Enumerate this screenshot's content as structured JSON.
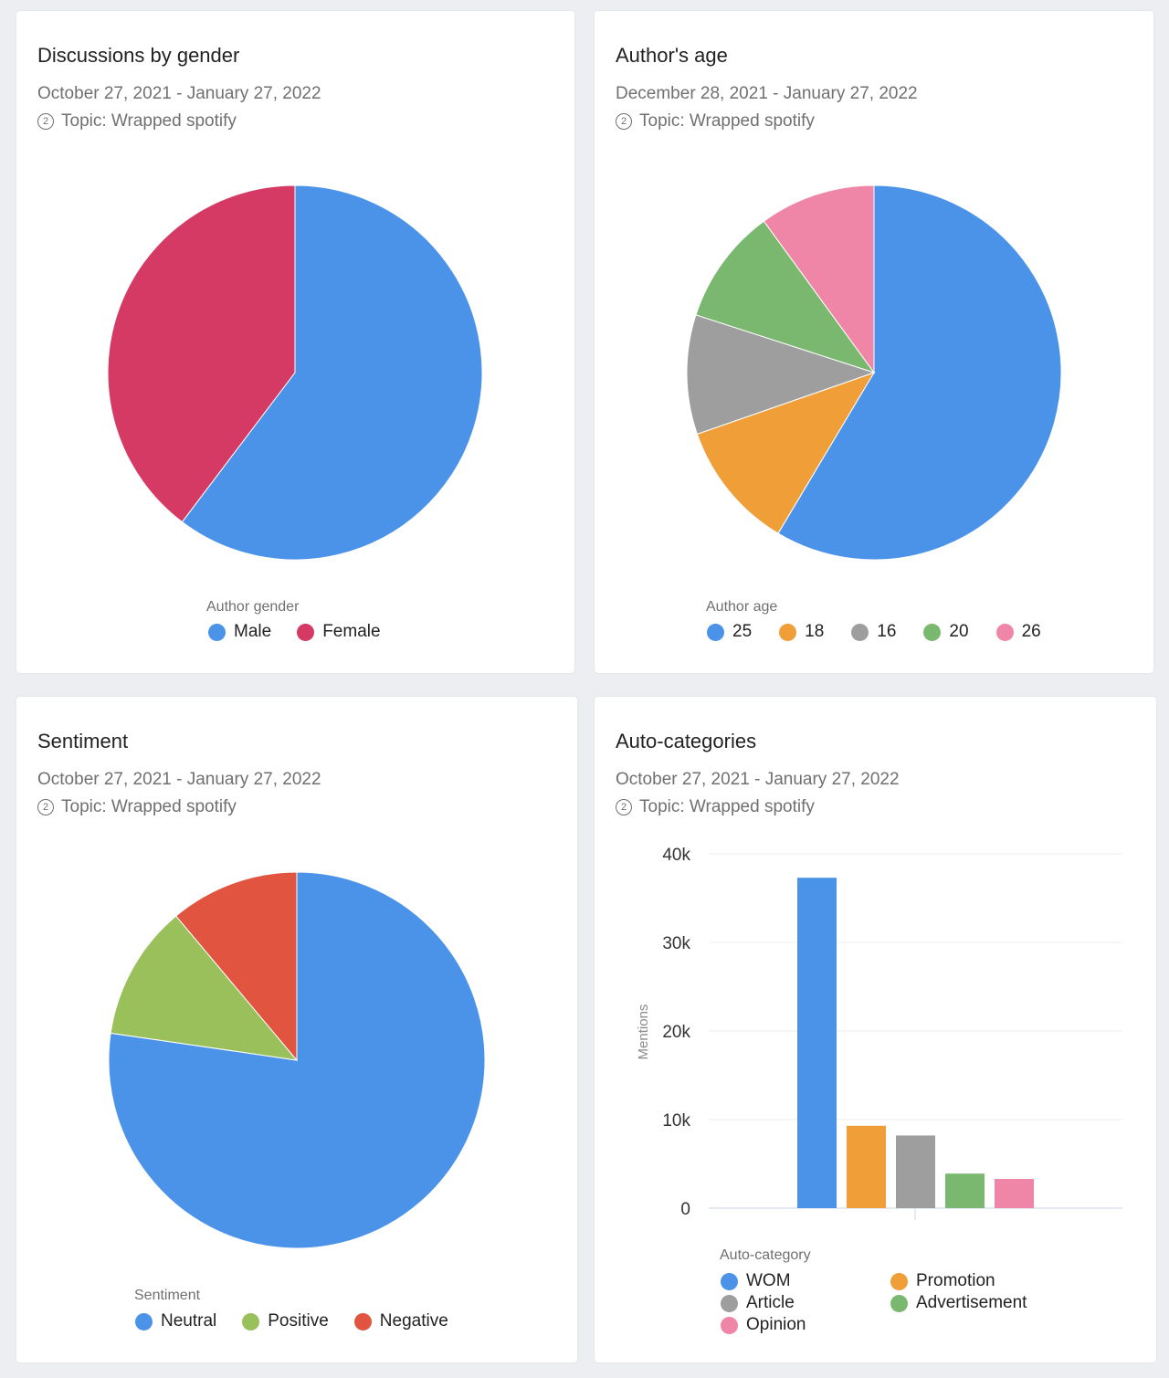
{
  "common": {
    "topic_icon": "topic-number-icon"
  },
  "chart_data": [
    {
      "type": "pie",
      "title": "Discussions by gender",
      "date_range": "October 27, 2021 - January 27, 2022",
      "topic": "Topic: Wrapped spotify",
      "legend_title": "Author gender",
      "categories": [
        "Male",
        "Female"
      ],
      "values": [
        60.3,
        39.7
      ],
      "colors": [
        "#4a93e8",
        "#d43a63"
      ]
    },
    {
      "type": "pie",
      "title": "Author's age",
      "date_range": "December 28, 2021 - January 27, 2022",
      "topic": "Topic: Wrapped spotify",
      "legend_title": "Author age",
      "categories": [
        "25",
        "18",
        "16",
        "20",
        "26"
      ],
      "values": [
        58.5,
        11.1,
        10.3,
        10.0,
        10.0
      ],
      "colors": [
        "#4a93e8",
        "#f09e38",
        "#9e9e9e",
        "#7bb86f",
        "#ef86a8"
      ]
    },
    {
      "type": "pie",
      "title": "Sentiment",
      "date_range": "October 27, 2021 - January 27, 2022",
      "topic": "Topic: Wrapped spotify",
      "legend_title": "Sentiment",
      "categories": [
        "Neutral",
        "Positive",
        "Negative"
      ],
      "values": [
        77.3,
        11.6,
        11.1
      ],
      "colors": [
        "#4a93e8",
        "#9ac05c",
        "#e05440"
      ]
    },
    {
      "type": "bar",
      "title": "Auto-categories",
      "date_range": "October 27, 2021 - January 27, 2022",
      "topic": "Topic: Wrapped spotify",
      "legend_title": "Auto-category",
      "ylabel": "Mentions",
      "ylim": [
        0,
        40000
      ],
      "yticks": [
        "0",
        "10k",
        "20k",
        "30k",
        "40k"
      ],
      "grid": true,
      "categories": [
        "WOM",
        "Promotion",
        "Article",
        "Advertisement",
        "Opinion"
      ],
      "values": [
        37300,
        9300,
        8200,
        3900,
        3300
      ],
      "colors": [
        "#4a93e8",
        "#f09e38",
        "#9e9e9e",
        "#7bb86f",
        "#ef86a8"
      ]
    }
  ]
}
